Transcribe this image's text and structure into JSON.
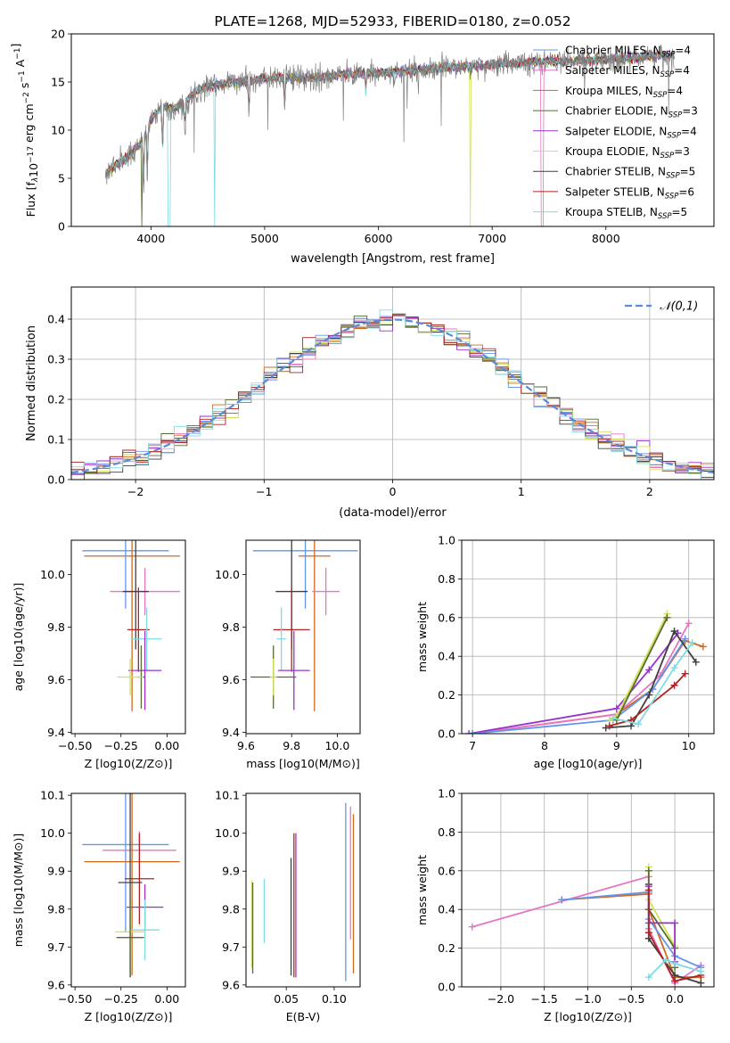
{
  "chart_data": [
    {
      "id": "spectrum",
      "type": "line",
      "title": "PLATE=1268, MJD=52933, FIBERID=0180, z=0.052",
      "xlabel": "wavelength [Angstrom, rest frame]",
      "ylabel": "Flux [f_λ 10^-17 erg cm^-2 s^-1 A^-1]",
      "xlim": [
        3300,
        8950
      ],
      "ylim": [
        0,
        20
      ],
      "xticks": [
        4000,
        5000,
        6000,
        7000,
        8000
      ],
      "yticks": [
        0,
        5,
        10,
        15,
        20
      ],
      "legend_position": "right",
      "observed_color": "#808080",
      "series": [
        {
          "name": "Chabrier MILES, N_SSP=4",
          "color": "#6495ed"
        },
        {
          "name": "Salpeter MILES, N_SSP=4",
          "color": "#e377c2"
        },
        {
          "name": "Kroupa MILES, N_SSP=4",
          "color": "#d2691e"
        },
        {
          "name": "Chabrier ELODIE, N_SSP=3",
          "color": "#556b2f"
        },
        {
          "name": "Salpeter ELODIE, N_SSP=4",
          "color": "#9932cc"
        },
        {
          "name": "Kroupa ELODIE, N_SSP=3",
          "color": "#d4e157"
        },
        {
          "name": "Chabrier STELIB, N_SSP=5",
          "color": "#404040"
        },
        {
          "name": "Salpeter STELIB, N_SSP=6",
          "color": "#b22222"
        },
        {
          "name": "Kroupa STELIB, N_SSP=5",
          "color": "#7fdbe0"
        }
      ],
      "continuum": [
        [
          3600,
          5.5
        ],
        [
          3700,
          6.5
        ],
        [
          3800,
          7.2
        ],
        [
          3900,
          8.5
        ],
        [
          4000,
          11.0
        ],
        [
          4100,
          12.5
        ],
        [
          4200,
          12.2
        ],
        [
          4300,
          13.0
        ],
        [
          4400,
          14.0
        ],
        [
          4500,
          14.5
        ],
        [
          4700,
          15.0
        ],
        [
          4900,
          15.2
        ],
        [
          5100,
          15.5
        ],
        [
          5300,
          15.4
        ],
        [
          5500,
          15.5
        ],
        [
          5700,
          15.8
        ],
        [
          5900,
          15.9
        ],
        [
          6100,
          16.0
        ],
        [
          6300,
          16.2
        ],
        [
          6500,
          16.4
        ],
        [
          6700,
          16.6
        ],
        [
          6900,
          16.7
        ],
        [
          7100,
          16.9
        ],
        [
          7300,
          17.0
        ],
        [
          7500,
          17.2
        ],
        [
          7700,
          17.1
        ],
        [
          7900,
          17.3
        ],
        [
          8100,
          17.4
        ],
        [
          8300,
          17.6
        ],
        [
          8500,
          17.8
        ],
        [
          8600,
          17.7
        ]
      ]
    },
    {
      "id": "residuals",
      "type": "line",
      "xlabel": "(data-model)/error",
      "ylabel": "Normed distribution",
      "xlim": [
        -2.5,
        2.5
      ],
      "ylim": [
        0,
        0.48
      ],
      "xticks": [
        -2,
        -1,
        0,
        1,
        2
      ],
      "yticks": [
        0.0,
        0.1,
        0.2,
        0.3,
        0.4
      ],
      "reference_label": "𝒩(0,1)",
      "reference_color": "#5b8ad8",
      "legend_position": "upper right",
      "grid": true
    },
    {
      "id": "age_vs_Z",
      "type": "scatter",
      "xlabel": "Z [log10(Z/Z⊙)]",
      "ylabel": "age  [log10(age/yr)]",
      "xlim": [
        -0.52,
        0.1
      ],
      "ylim": [
        9.395,
        10.13
      ],
      "xticks": [
        -0.5,
        -0.25,
        0.0
      ],
      "yticks": [
        9.4,
        9.6,
        9.8,
        10.0
      ],
      "points": [
        {
          "color": "#6495ed",
          "x": -0.225,
          "xerr": 0.235,
          "y": 10.09,
          "yerr": 0.22
        },
        {
          "color": "#d2691e",
          "x": -0.19,
          "xerr": 0.26,
          "y": 10.07,
          "yerr": 0.59
        },
        {
          "color": "#e377c2",
          "x": -0.12,
          "xerr": 0.19,
          "y": 9.935,
          "yerr": 0.09
        },
        {
          "color": "#404040",
          "x": -0.17,
          "xerr": 0.07,
          "y": 9.935,
          "yerr": 0.22
        },
        {
          "color": "#b22222",
          "x": -0.155,
          "xerr": 0.06,
          "y": 9.79,
          "yerr": 0.16
        },
        {
          "color": "#7fdbe0",
          "x": -0.11,
          "xerr": 0.08,
          "y": 9.755,
          "yerr": 0.12
        },
        {
          "color": "#9932cc",
          "x": -0.12,
          "xerr": 0.09,
          "y": 9.635,
          "yerr": 0.15
        },
        {
          "color": "#556b2f",
          "x": -0.14,
          "xerr": 0.02,
          "y": 9.61,
          "yerr": 0.12
        },
        {
          "color": "#d4e157",
          "x": -0.2,
          "xerr": 0.07,
          "y": 9.61,
          "yerr": 0.07
        }
      ]
    },
    {
      "id": "age_vs_mass",
      "type": "scatter",
      "xlabel": "mass [log10(M/M⊙)]",
      "ylabel": "",
      "xlim": [
        9.6,
        10.1
      ],
      "ylim": [
        9.395,
        10.13
      ],
      "xticks": [
        9.6,
        9.8,
        10.0
      ],
      "yticks": [
        9.4,
        9.6,
        9.8,
        10.0
      ],
      "points": [
        {
          "color": "#6495ed",
          "x": 9.86,
          "xerr": 0.23,
          "y": 10.09,
          "yerr": 0.22
        },
        {
          "color": "#d2691e",
          "x": 9.9,
          "xerr": 0.07,
          "y": 10.07,
          "yerr": 0.59
        },
        {
          "color": "#e377c2",
          "x": 9.95,
          "xerr": 0.06,
          "y": 9.935,
          "yerr": 0.09
        },
        {
          "color": "#404040",
          "x": 9.8,
          "xerr": 0.07,
          "y": 9.935,
          "yerr": 0.22
        },
        {
          "color": "#b22222",
          "x": 9.8,
          "xerr": 0.08,
          "y": 9.79,
          "yerr": 0.16
        },
        {
          "color": "#7fdbe0",
          "x": 9.755,
          "xerr": 0.02,
          "y": 9.755,
          "yerr": 0.12
        },
        {
          "color": "#9932cc",
          "x": 9.81,
          "xerr": 0.07,
          "y": 9.635,
          "yerr": 0.15
        },
        {
          "color": "#556b2f",
          "x": 9.72,
          "xerr": 0.1,
          "y": 9.61,
          "yerr": 0.12
        },
        {
          "color": "#d4e157",
          "x": 9.72,
          "xerr": 0.015,
          "y": 9.61,
          "yerr": 0.07
        }
      ]
    },
    {
      "id": "massweight_vs_age",
      "type": "line",
      "xlabel": "age  [log10(age/yr)]",
      "ylabel": "mass weight",
      "xlim": [
        6.85,
        10.35
      ],
      "ylim": [
        0,
        1
      ],
      "xticks": [
        7,
        8,
        9,
        10
      ],
      "yticks": [
        0.0,
        0.2,
        0.4,
        0.6,
        0.8,
        1.0
      ],
      "grid": true,
      "series": [
        {
          "color": "#d2691e",
          "points": [
            [
              7.0,
              0.0
            ],
            [
              9.0,
              0.1
            ],
            [
              9.5,
              0.23
            ],
            [
              9.95,
              0.48
            ],
            [
              10.2,
              0.45
            ]
          ]
        },
        {
          "color": "#e377c2",
          "points": [
            [
              7.0,
              0.0
            ],
            [
              9.0,
              0.1
            ],
            [
              9.6,
              0.3
            ],
            [
              10.0,
              0.57
            ]
          ]
        },
        {
          "color": "#9932cc",
          "points": [
            [
              6.95,
              0.0
            ],
            [
              9.0,
              0.13
            ],
            [
              9.45,
              0.33
            ],
            [
              9.85,
              0.52
            ]
          ]
        },
        {
          "color": "#6495ed",
          "points": [
            [
              7.0,
              0.0
            ],
            [
              8.95,
              0.07
            ],
            [
              9.5,
              0.23
            ],
            [
              9.95,
              0.49
            ]
          ]
        },
        {
          "color": "#404040",
          "points": [
            [
              8.85,
              0.03
            ],
            [
              9.2,
              0.04
            ],
            [
              9.45,
              0.2
            ],
            [
              9.8,
              0.53
            ],
            [
              10.1,
              0.37
            ]
          ]
        },
        {
          "color": "#d4e157",
          "points": [
            [
              8.9,
              0.07
            ],
            [
              9.0,
              0.09
            ],
            [
              9.7,
              0.62
            ]
          ]
        },
        {
          "color": "#556b2f",
          "points": [
            [
              9.0,
              0.07
            ],
            [
              9.7,
              0.6
            ]
          ]
        },
        {
          "color": "#b22222",
          "points": [
            [
              8.9,
              0.04
            ],
            [
              9.2,
              0.07
            ],
            [
              9.8,
              0.25
            ],
            [
              9.95,
              0.31
            ]
          ]
        },
        {
          "color": "#7fdbe0",
          "points": [
            [
              8.95,
              0.08
            ],
            [
              9.3,
              0.05
            ],
            [
              9.8,
              0.34
            ],
            [
              10.05,
              0.47
            ]
          ]
        }
      ]
    },
    {
      "id": "mass_vs_Z",
      "type": "scatter",
      "xlabel": "Z [log10(Z/Z⊙)]",
      "ylabel": "mass [log10(M/M⊙)]",
      "xlim": [
        -0.52,
        0.1
      ],
      "ylim": [
        9.595,
        10.105
      ],
      "xticks": [
        -0.5,
        -0.25,
        0.0
      ],
      "yticks": [
        9.6,
        9.7,
        9.8,
        9.9,
        10.0,
        10.1
      ],
      "points": [
        {
          "color": "#6495ed",
          "x": -0.225,
          "xerr": 0.235,
          "y": 9.97,
          "yerr": 0.23
        },
        {
          "color": "#e377c2",
          "x": -0.15,
          "xerr": 0.2,
          "y": 9.955,
          "yerr": 0.05
        },
        {
          "color": "#d2691e",
          "x": -0.19,
          "xerr": 0.26,
          "y": 9.925,
          "yerr": 0.3
        },
        {
          "color": "#b22222",
          "x": -0.15,
          "xerr": 0.08,
          "y": 9.88,
          "yerr": 0.12
        },
        {
          "color": "#404040",
          "x": -0.2,
          "xerr": 0.065,
          "y": 9.87,
          "yerr": 0.25
        },
        {
          "color": "#9932cc",
          "x": -0.12,
          "xerr": 0.1,
          "y": 9.805,
          "yerr": 0.06
        },
        {
          "color": "#7fdbe0",
          "x": -0.12,
          "xerr": 0.08,
          "y": 9.745,
          "yerr": 0.08
        },
        {
          "color": "#d4e157",
          "x": -0.2,
          "xerr": 0.08,
          "y": 9.74,
          "yerr": 0.07
        },
        {
          "color": "#556b2f",
          "x": -0.2,
          "xerr": 0.075,
          "y": 9.725,
          "yerr": 0.1
        }
      ]
    },
    {
      "id": "mass_vs_EBV",
      "type": "scatter",
      "xlabel": "E(B-V)",
      "ylabel": "",
      "xlim": [
        0.008,
        0.127
      ],
      "ylim": [
        9.595,
        10.105
      ],
      "xticks": [
        0.05,
        0.1
      ],
      "yticks": [
        9.6,
        9.7,
        9.8,
        9.9,
        10.0,
        10.1
      ],
      "points": [
        {
          "color": "#6495ed",
          "x": 0.112,
          "y": 9.845,
          "yerr": 0.235
        },
        {
          "color": "#e377c2",
          "x": 0.117,
          "y": 9.895,
          "yerr": 0.175
        },
        {
          "color": "#d2691e",
          "x": 0.12,
          "y": 9.84,
          "yerr": 0.21
        },
        {
          "color": "#b22222",
          "x": 0.058,
          "y": 9.81,
          "yerr": 0.19
        },
        {
          "color": "#404040",
          "x": 0.055,
          "y": 9.78,
          "yerr": 0.155
        },
        {
          "color": "#9932cc",
          "x": 0.06,
          "y": 9.81,
          "yerr": 0.19
        },
        {
          "color": "#7fdbe0",
          "x": 0.027,
          "y": 9.795,
          "yerr": 0.085
        },
        {
          "color": "#d4e157",
          "x": 0.014,
          "y": 9.76,
          "yerr": 0.115
        },
        {
          "color": "#556b2f",
          "x": 0.015,
          "y": 9.75,
          "yerr": 0.12
        }
      ]
    },
    {
      "id": "massweight_vs_Z",
      "type": "line",
      "xlabel": "Z [log10(Z/Z⊙)]",
      "ylabel": "mass weight",
      "xlim": [
        -2.45,
        0.45
      ],
      "ylim": [
        0,
        1
      ],
      "xticks": [
        -2.0,
        -1.5,
        -1.0,
        -0.5,
        0.0
      ],
      "yticks": [
        0.0,
        0.2,
        0.4,
        0.6,
        0.8,
        1.0
      ],
      "grid": true,
      "series": [
        {
          "color": "#e377c2",
          "points": [
            [
              -2.33,
              0.31
            ],
            [
              -0.3,
              0.57
            ],
            [
              -0.3,
              0.3
            ],
            [
              0.0,
              0.02
            ],
            [
              0.3,
              0.11
            ]
          ]
        },
        {
          "color": "#d2691e",
          "points": [
            [
              -1.3,
              0.45
            ],
            [
              -0.3,
              0.48
            ],
            [
              -0.3,
              0.4
            ],
            [
              0.0,
              0.05
            ],
            [
              0.3,
              0.05
            ]
          ]
        },
        {
          "color": "#6495ed",
          "points": [
            [
              -1.3,
              0.45
            ],
            [
              -0.3,
              0.49
            ],
            [
              -0.3,
              0.35
            ],
            [
              0.0,
              0.16
            ],
            [
              0.3,
              0.1
            ]
          ]
        },
        {
          "color": "#404040",
          "points": [
            [
              -0.3,
              0.53
            ],
            [
              -0.3,
              0.25
            ],
            [
              0.0,
              0.06
            ],
            [
              0.3,
              0.02
            ]
          ]
        },
        {
          "color": "#d4e157",
          "points": [
            [
              -0.3,
              0.62
            ],
            [
              -0.3,
              0.45
            ],
            [
              0.0,
              0.21
            ],
            [
              0.0,
              0.1
            ]
          ]
        },
        {
          "color": "#556b2f",
          "points": [
            [
              -0.3,
              0.6
            ],
            [
              -0.3,
              0.4
            ],
            [
              0.0,
              0.2
            ],
            [
              0.0,
              0.1
            ]
          ]
        },
        {
          "color": "#9932cc",
          "points": [
            [
              -0.3,
              0.52
            ],
            [
              -0.3,
              0.33
            ],
            [
              0.0,
              0.33
            ],
            [
              0.0,
              0.13
            ]
          ]
        },
        {
          "color": "#b22222",
          "points": [
            [
              -0.3,
              0.5
            ],
            [
              -0.3,
              0.28
            ],
            [
              0.0,
              0.03
            ],
            [
              0.3,
              0.06
            ]
          ]
        },
        {
          "color": "#7fdbe0",
          "points": [
            [
              -0.3,
              0.05
            ],
            [
              -0.1,
              0.14
            ],
            [
              0.0,
              0.12
            ],
            [
              0.3,
              0.08
            ]
          ]
        }
      ]
    }
  ]
}
